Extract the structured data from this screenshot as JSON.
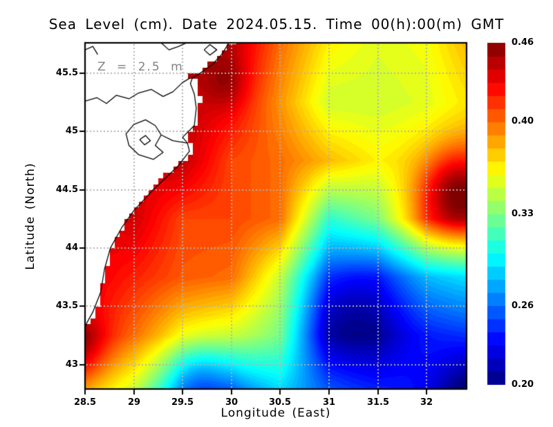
{
  "title": "Sea Level (cm). Date 2024.05.15. Time 00(h):00(m) GMT",
  "annotation": "Z = 2.5 m",
  "axes": {
    "xlabel": "Longitude (East)",
    "ylabel": "Latitude (North)",
    "x_tick_labels": [
      "28.5",
      "29",
      "29.5",
      "30",
      "30.5",
      "31",
      "31.5",
      "32"
    ],
    "x_tick_values": [
      28.5,
      29,
      29.5,
      30,
      30.5,
      31,
      31.5,
      32
    ],
    "y_tick_labels": [
      "45.5",
      "45",
      "44.5",
      "44",
      "43.5",
      "43"
    ],
    "y_tick_values": [
      45.5,
      45,
      44.5,
      44,
      43.5,
      43
    ],
    "grid_on": true
  },
  "colorbar": {
    "tick_labels": [
      "0.46",
      "0.40",
      "0.33",
      "0.26",
      "0.20"
    ],
    "tick_values": [
      0.46,
      0.4,
      0.33,
      0.26,
      0.2
    ],
    "min": 0.2,
    "max": 0.46
  },
  "colors": {
    "background": "#ffffff",
    "frame": "#000000",
    "gridline": "#b2b2b2",
    "land": "#ffffff",
    "coastline": "#000000",
    "annotation_text": "#828282"
  },
  "chart_data": {
    "type": "heatmap",
    "colormap": "jet",
    "title": "Sea Level (cm). Date 2024.05.15. Time 00(h):00(m) GMT",
    "xlabel": "Longitude (East)",
    "ylabel": "Latitude (North)",
    "lon_range": [
      28.5,
      32.41
    ],
    "lat_range": [
      42.79,
      45.76
    ],
    "value_range": [
      0.2,
      0.46
    ],
    "contour_step": 0.004,
    "grid": {
      "lons": [
        28.5,
        29.0,
        29.5,
        30.0,
        30.5,
        31.0,
        31.5,
        32.0,
        32.5
      ],
      "lats": [
        45.75,
        45.25,
        44.75,
        44.25,
        43.75,
        43.25,
        42.75
      ],
      "values": [
        [
          0.44,
          0.445,
          0.45,
          0.445,
          0.4,
          0.365,
          0.355,
          0.36,
          0.385
        ],
        [
          0.43,
          0.435,
          0.445,
          0.43,
          0.39,
          0.35,
          0.35,
          0.355,
          0.37
        ],
        [
          0.43,
          0.435,
          0.445,
          0.41,
          0.4,
          0.38,
          0.365,
          0.37,
          0.38
        ],
        [
          0.43,
          0.44,
          0.41,
          0.41,
          0.4,
          0.31,
          0.33,
          0.39,
          0.4
        ],
        [
          0.435,
          0.42,
          0.405,
          0.4,
          0.35,
          0.26,
          0.25,
          0.28,
          0.29
        ],
        [
          0.43,
          0.4,
          0.365,
          0.35,
          0.33,
          0.23,
          0.22,
          0.24,
          0.25
        ],
        [
          0.38,
          0.345,
          0.28,
          0.255,
          0.285,
          0.26,
          0.245,
          0.235,
          0.21
        ]
      ]
    },
    "hotspots": [
      {
        "lon": 29.95,
        "lat": 45.42,
        "amp": 0.018,
        "sigma": 0.16
      },
      {
        "lon": 32.32,
        "lat": 44.48,
        "amp": 0.075,
        "sigma": 0.27
      },
      {
        "lon": 31.2,
        "lat": 43.45,
        "amp": -0.028,
        "sigma": 0.34
      },
      {
        "lon": 29.65,
        "lat": 42.9,
        "amp": -0.03,
        "sigma": 0.22
      },
      {
        "lon": 32.45,
        "lat": 42.72,
        "amp": -0.025,
        "sigma": 0.28
      },
      {
        "lon": 28.45,
        "lat": 43.15,
        "amp": 0.03,
        "sigma": 0.18
      }
    ],
    "land_boundary": [
      [
        45.78,
        30.05
      ],
      [
        45.62,
        29.83
      ],
      [
        45.5,
        29.66
      ],
      [
        45.47,
        29.55
      ],
      [
        45.44,
        29.62
      ],
      [
        45.3,
        29.68
      ],
      [
        45.12,
        29.65
      ],
      [
        45.02,
        29.62
      ],
      [
        44.95,
        29.5
      ],
      [
        44.9,
        29.58
      ],
      [
        44.82,
        29.6
      ],
      [
        44.65,
        29.35
      ],
      [
        44.4,
        29.05
      ],
      [
        44.2,
        28.9
      ],
      [
        44.0,
        28.77
      ],
      [
        43.8,
        28.7
      ],
      [
        43.6,
        28.66
      ],
      [
        43.45,
        28.6
      ],
      [
        43.33,
        28.5
      ]
    ],
    "land_min_lat": 43.32,
    "coastlines": [
      [
        [
          29.99,
          45.78
        ],
        [
          29.9,
          45.66
        ],
        [
          29.8,
          45.57
        ],
        [
          29.68,
          45.5
        ],
        [
          29.6,
          45.46
        ],
        [
          29.58,
          45.41
        ],
        [
          29.62,
          45.32
        ],
        [
          29.64,
          45.2
        ],
        [
          29.62,
          45.05
        ],
        [
          29.5,
          44.95
        ],
        [
          29.55,
          44.9
        ],
        [
          29.57,
          44.83
        ],
        [
          29.45,
          44.7
        ],
        [
          29.2,
          44.5
        ],
        [
          29.0,
          44.32
        ],
        [
          28.88,
          44.18
        ],
        [
          28.76,
          44.0
        ],
        [
          28.7,
          43.82
        ],
        [
          28.66,
          43.62
        ],
        [
          28.58,
          43.45
        ],
        [
          28.52,
          43.36
        ],
        [
          28.5,
          43.32
        ]
      ],
      [
        [
          28.5,
          45.26
        ],
        [
          28.62,
          45.29
        ],
        [
          28.72,
          45.24
        ],
        [
          28.82,
          45.31
        ],
        [
          28.95,
          45.28
        ],
        [
          29.05,
          45.33
        ],
        [
          29.18,
          45.36
        ],
        [
          29.3,
          45.3
        ],
        [
          29.4,
          45.34
        ],
        [
          29.5,
          45.42
        ],
        [
          29.58,
          45.46
        ]
      ],
      [
        [
          29.0,
          45.06
        ],
        [
          29.12,
          45.1
        ],
        [
          29.22,
          45.05
        ],
        [
          29.28,
          44.97
        ],
        [
          29.22,
          44.88
        ],
        [
          29.3,
          44.82
        ],
        [
          29.2,
          44.76
        ],
        [
          29.05,
          44.8
        ],
        [
          28.95,
          44.88
        ],
        [
          28.92,
          44.98
        ],
        [
          29.0,
          45.06
        ]
      ],
      [
        [
          29.28,
          44.97
        ],
        [
          29.4,
          44.92
        ],
        [
          29.55,
          44.9
        ]
      ],
      [
        [
          29.72,
          45.7
        ],
        [
          29.78,
          45.745
        ],
        [
          29.85,
          45.7
        ],
        [
          29.78,
          45.655
        ],
        [
          29.72,
          45.7
        ]
      ],
      [
        [
          28.5,
          45.7
        ],
        [
          28.58,
          45.73
        ],
        [
          28.63,
          45.66
        ]
      ],
      [
        [
          29.28,
          45.76
        ],
        [
          29.36,
          45.7
        ],
        [
          29.46,
          45.73
        ],
        [
          29.54,
          45.76
        ]
      ],
      [
        [
          29.06,
          44.93
        ],
        [
          29.12,
          44.965
        ],
        [
          29.17,
          44.92
        ],
        [
          29.11,
          44.885
        ],
        [
          29.06,
          44.93
        ]
      ]
    ]
  }
}
